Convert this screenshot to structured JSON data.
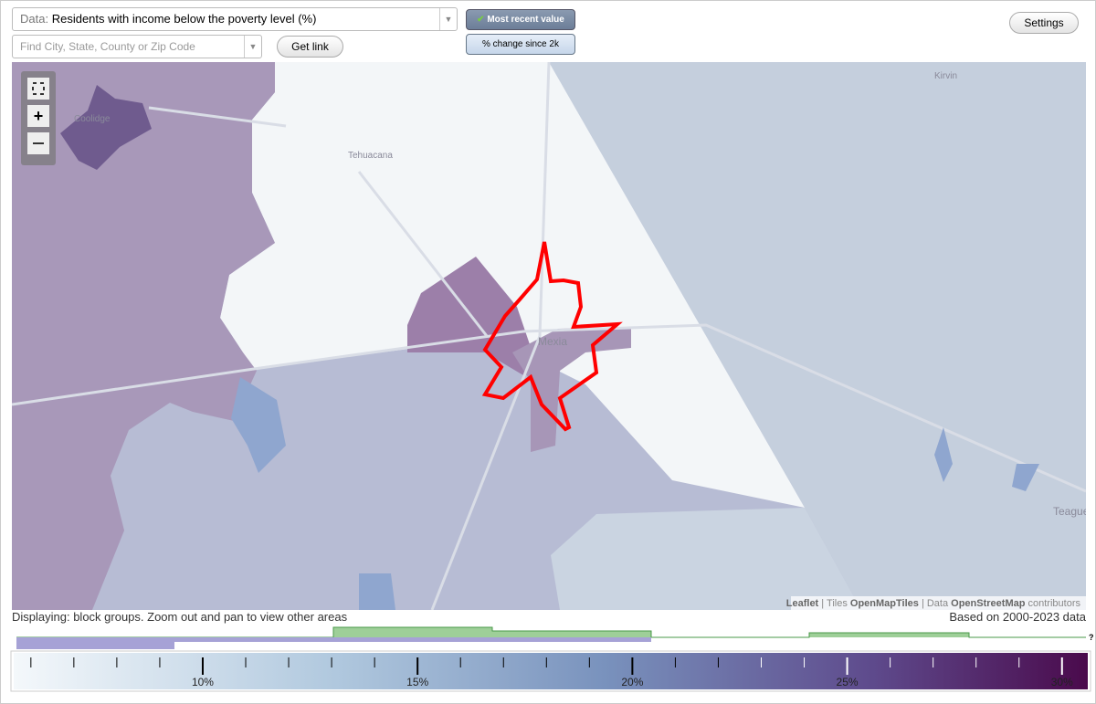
{
  "toolbar": {
    "data_prefix": "Data:",
    "data_value": "Residents with income below the poverty level (%)",
    "search_placeholder": "Find City, State, County or Zip Code",
    "get_link": "Get link",
    "most_recent": "Most recent value",
    "change_since": "% change since 2k",
    "settings": "Settings"
  },
  "map": {
    "places": [
      "Coolidge",
      "Tehuacana",
      "Mexia",
      "Kirvin",
      "Teague"
    ],
    "attribution": {
      "leaflet": "Leaflet",
      "sep1": "| Tiles",
      "tiles": "OpenMapTiles",
      "sep2": "| Data",
      "data": "OpenStreetMap",
      "tail": "contributors"
    }
  },
  "status": {
    "displaying": "Displaying: block groups. Zoom out and pan to view other areas",
    "based_on": "Based on 2000-2023 data",
    "help": "?"
  },
  "legend": {
    "range": [
      5.6,
      30.6
    ],
    "ticks": [
      6,
      7,
      8,
      9,
      {
        "value": 10,
        "label": "10%"
      },
      11,
      12,
      13,
      14,
      {
        "value": 15,
        "label": "15%"
      },
      16,
      17,
      18,
      19,
      {
        "value": 20,
        "label": "20%"
      },
      21,
      22,
      23,
      24,
      {
        "value": 25,
        "label": "25%"
      },
      26,
      27,
      28,
      29,
      {
        "value": 30,
        "label": "30%"
      }
    ]
  }
}
